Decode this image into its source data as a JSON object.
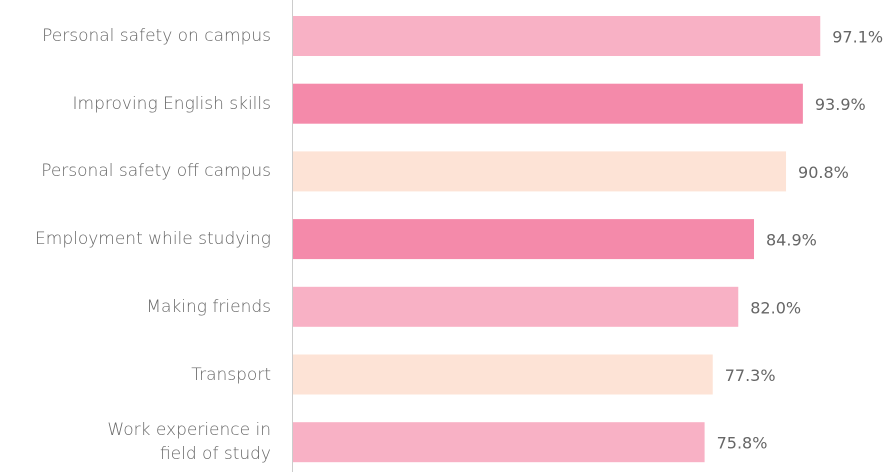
{
  "chart_data": {
    "type": "bar",
    "orientation": "horizontal",
    "categories": [
      "Personal safety on campus",
      "Improving English skills",
      "Personal safety off campus",
      "Employment while studying",
      "Making friends",
      "Transport",
      "Work experience in\nfield of study"
    ],
    "values": [
      97.1,
      93.9,
      90.8,
      84.9,
      82.0,
      77.3,
      75.8
    ],
    "value_labels": [
      "97.1%",
      "93.9%",
      "90.8%",
      "84.9%",
      "82.0%",
      "77.3%",
      "75.8%"
    ],
    "colors": [
      "#f8b1c5",
      "#f48aaa",
      "#fde3d6",
      "#f48aaa",
      "#f8b1c5",
      "#fde3d6",
      "#f8b1c5"
    ],
    "xlim": [
      0,
      100
    ]
  }
}
